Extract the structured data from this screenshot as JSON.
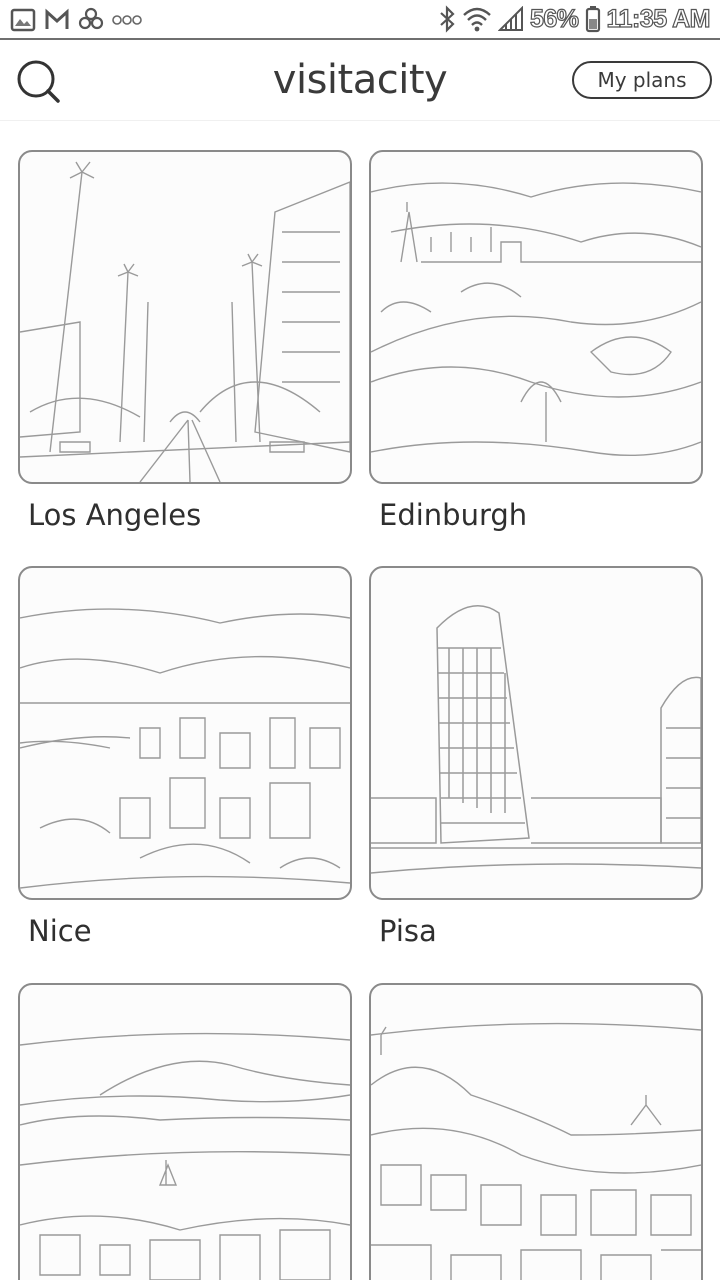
{
  "status_bar": {
    "battery": "56%",
    "time": "11:35 AM",
    "icons": [
      "gallery-icon",
      "gmail-icon",
      "pinwheel-icon",
      "more-icon",
      "bluetooth-icon",
      "wifi-icon",
      "signal-icon",
      "battery-icon"
    ]
  },
  "app_bar": {
    "logo": "visitacity",
    "my_plans_label": "My plans",
    "search_icon": "search-icon"
  },
  "cities": [
    {
      "name": "Los Angeles",
      "image": "palm-tree-boulevard"
    },
    {
      "name": "Edinburgh",
      "image": "castle-park"
    },
    {
      "name": "Nice",
      "image": "coastal-city-panorama"
    },
    {
      "name": "Pisa",
      "image": "leaning-tower"
    },
    {
      "name": "",
      "image": "bay-with-volcano"
    },
    {
      "name": "",
      "image": "hillside-town"
    }
  ]
}
